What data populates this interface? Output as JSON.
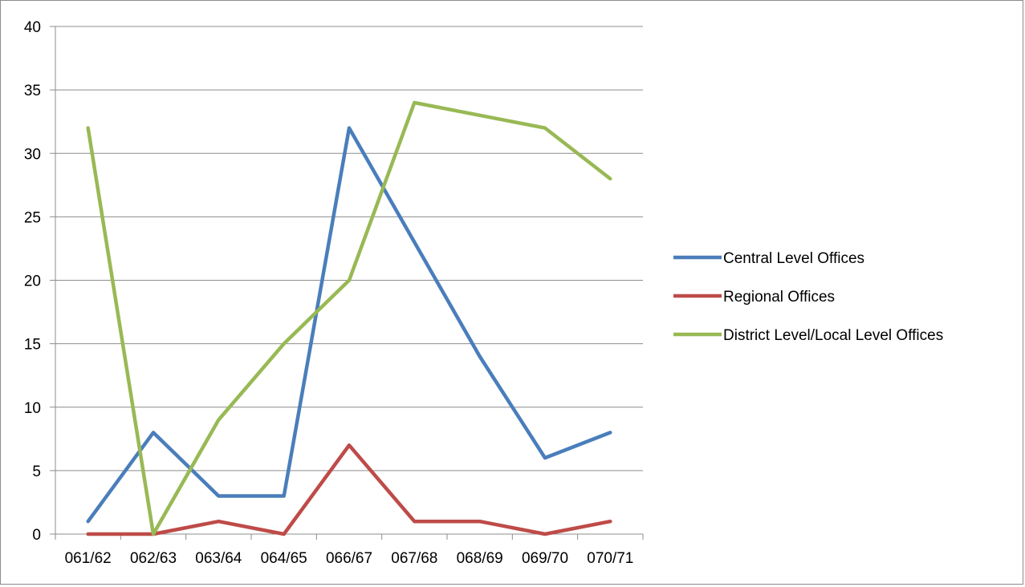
{
  "chart_data": {
    "type": "line",
    "title": "",
    "xlabel": "",
    "ylabel": "",
    "categories": [
      "061/62",
      "062/63",
      "063/64",
      "064/65",
      "066/67",
      "067/68",
      "068/69",
      "069/70",
      "070/71"
    ],
    "ylim": [
      0,
      40
    ],
    "yticks": [
      0,
      5,
      10,
      15,
      20,
      25,
      30,
      35,
      40
    ],
    "grid": true,
    "legend_position": "right",
    "series": [
      {
        "name": "Central Level Offices",
        "color": "#4a7ebb",
        "values": [
          1,
          8,
          3,
          3,
          32,
          23,
          14,
          6,
          8
        ]
      },
      {
        "name": "Regional Offices",
        "color": "#be4b48",
        "values": [
          0,
          0,
          1,
          0,
          7,
          1,
          1,
          0,
          1
        ]
      },
      {
        "name": "District Level/Local Level Offices",
        "color": "#98b954",
        "values": [
          32,
          0,
          9,
          15,
          20,
          34,
          33,
          32,
          28
        ]
      }
    ]
  }
}
